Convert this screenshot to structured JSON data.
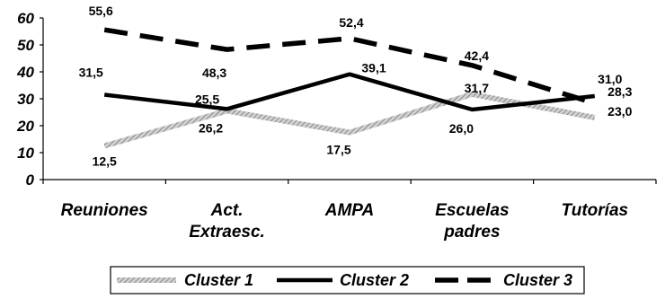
{
  "chart_data": {
    "type": "line",
    "categories": [
      [
        "Reuniones"
      ],
      [
        "Act.",
        "Extraesc."
      ],
      [
        "AMPA"
      ],
      [
        "Escuelas",
        "padres"
      ],
      [
        "Tutorías"
      ]
    ],
    "ylim": [
      0,
      60
    ],
    "yticks": [
      "0",
      "10",
      "20",
      "30",
      "40",
      "50",
      "60"
    ],
    "grid": false,
    "legend_position": "bottom",
    "series": [
      {
        "name": "Cluster 1",
        "values": [
          12.5,
          25.5,
          17.5,
          31.7,
          23.0
        ],
        "labels": [
          "12,5",
          "25,5",
          "17,5",
          "31,7",
          "23,0"
        ],
        "color": "#b8b8b8"
      },
      {
        "name": "Cluster 2",
        "values": [
          31.5,
          26.2,
          39.1,
          26.0,
          31.0
        ],
        "labels": [
          "31,5",
          "26,2",
          "39,1",
          "26,0",
          "31,0"
        ],
        "color": "#000000"
      },
      {
        "name": "Cluster 3",
        "values": [
          55.6,
          48.3,
          52.4,
          42.4,
          28.3
        ],
        "labels": [
          "55,6",
          "48,3",
          "52,4",
          "42,4",
          "28,3"
        ],
        "color": "#000000"
      }
    ]
  }
}
